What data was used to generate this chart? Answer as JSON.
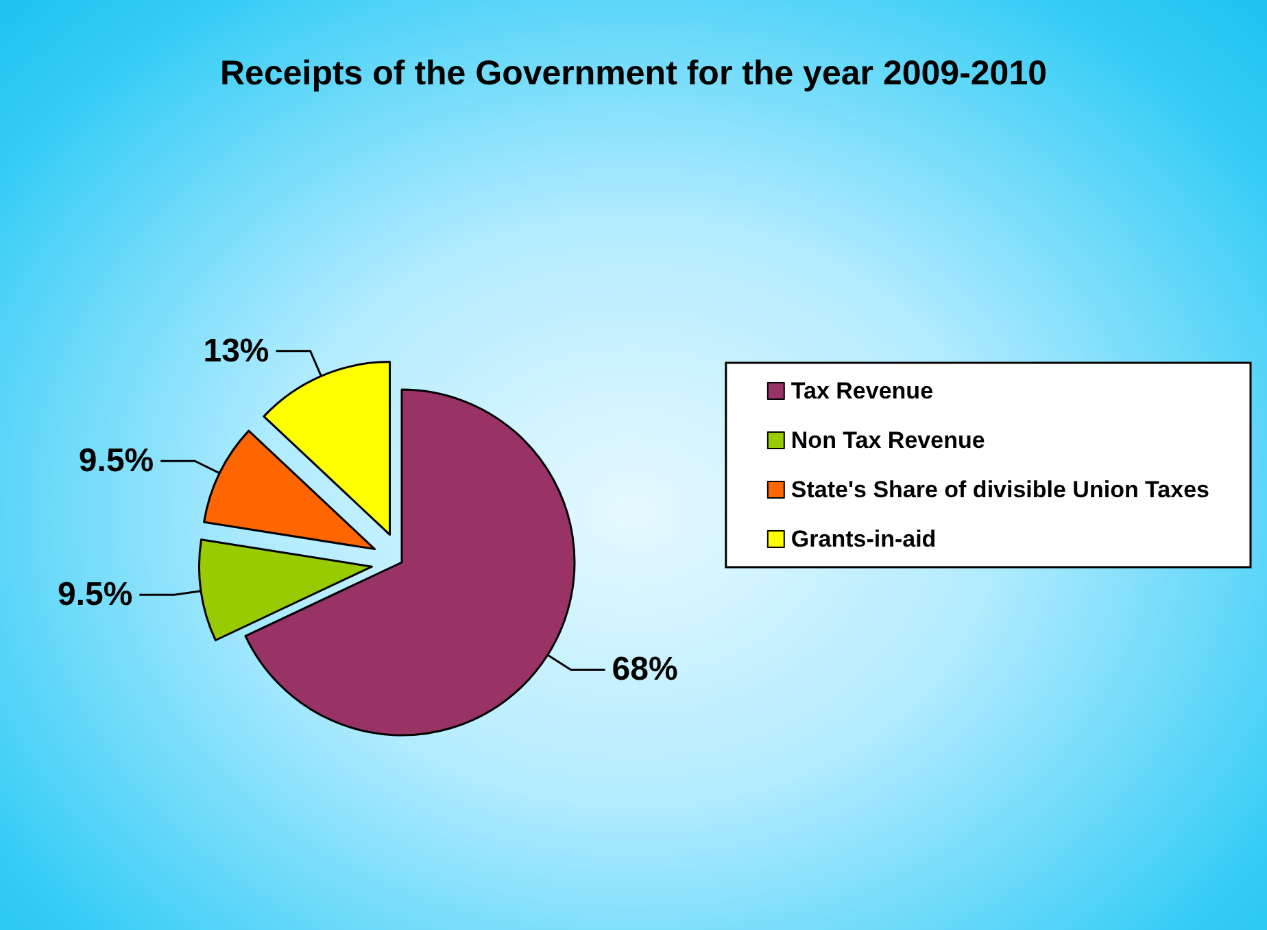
{
  "chart_data": {
    "type": "pie",
    "title": "Receipts of the Government for the year 2009-2010",
    "categories": [
      "Tax Revenue",
      "Non Tax Revenue",
      "State's Share of divisible Union Taxes",
      "Grants-in-aid"
    ],
    "values": [
      68,
      9.5,
      9.5,
      13
    ],
    "value_labels": [
      "68%",
      "9.5%",
      "9.5%",
      "13%"
    ],
    "colors": [
      "#993366",
      "#99cc00",
      "#ff6600",
      "#ffff00"
    ],
    "legend": "right"
  }
}
